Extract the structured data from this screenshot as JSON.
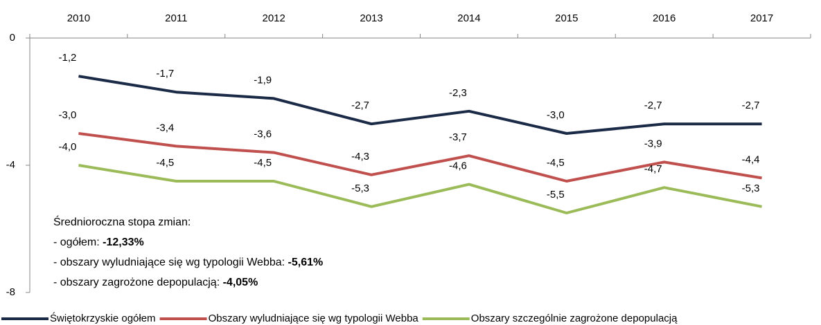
{
  "chart_data": {
    "type": "line",
    "categories": [
      "2010",
      "2011",
      "2012",
      "2013",
      "2014",
      "2015",
      "2016",
      "2017"
    ],
    "series": [
      {
        "name": "Świętokrzyskie ogółem",
        "color": "#1b2a47",
        "values": [
          -1.2,
          -1.7,
          -1.9,
          -2.7,
          -2.3,
          -3.0,
          -2.7,
          -2.7
        ],
        "value_labels": [
          "-1,2",
          "-1,7",
          "-1,9",
          "-2,7",
          "-2,3",
          "-3,0",
          "-2,7",
          "-2,7"
        ]
      },
      {
        "name": "Obszary wyludniające się wg typologii Webba",
        "color": "#c0504d",
        "values": [
          -3.0,
          -3.4,
          -3.6,
          -4.3,
          -3.7,
          -4.5,
          -3.9,
          -4.4
        ],
        "value_labels": [
          "-3,0",
          "-3,4",
          "-3,6",
          "-4,3",
          "-3,7",
          "-4,5",
          "-3,9",
          "-4,4"
        ]
      },
      {
        "name": "Obszary szczególnie zagrożone depopulacją",
        "color": "#9bbb59",
        "values": [
          -4.0,
          -4.5,
          -4.5,
          -5.3,
          -4.6,
          -5.5,
          -4.7,
          -5.3
        ],
        "value_labels": [
          "-4,0",
          "-4,5",
          "-4,5",
          "-5,3",
          "-4,6",
          "-5,5",
          "-4,7",
          "-5,3"
        ]
      }
    ],
    "ylim": [
      -8,
      0
    ],
    "yticks": [
      0,
      -4,
      -8
    ],
    "annotations": [
      {
        "text": "Średnioroczna stopa zmian:"
      },
      {
        "text": "- ogółem: ",
        "bold": "-12,33%"
      },
      {
        "text": "- obszary wyludniające się wg typologii Webba: ",
        "bold": "-5,61%"
      },
      {
        "text": "- obszary zagrożone depopulacją: ",
        "bold": "-4,05%"
      }
    ],
    "legend": "bottom"
  }
}
